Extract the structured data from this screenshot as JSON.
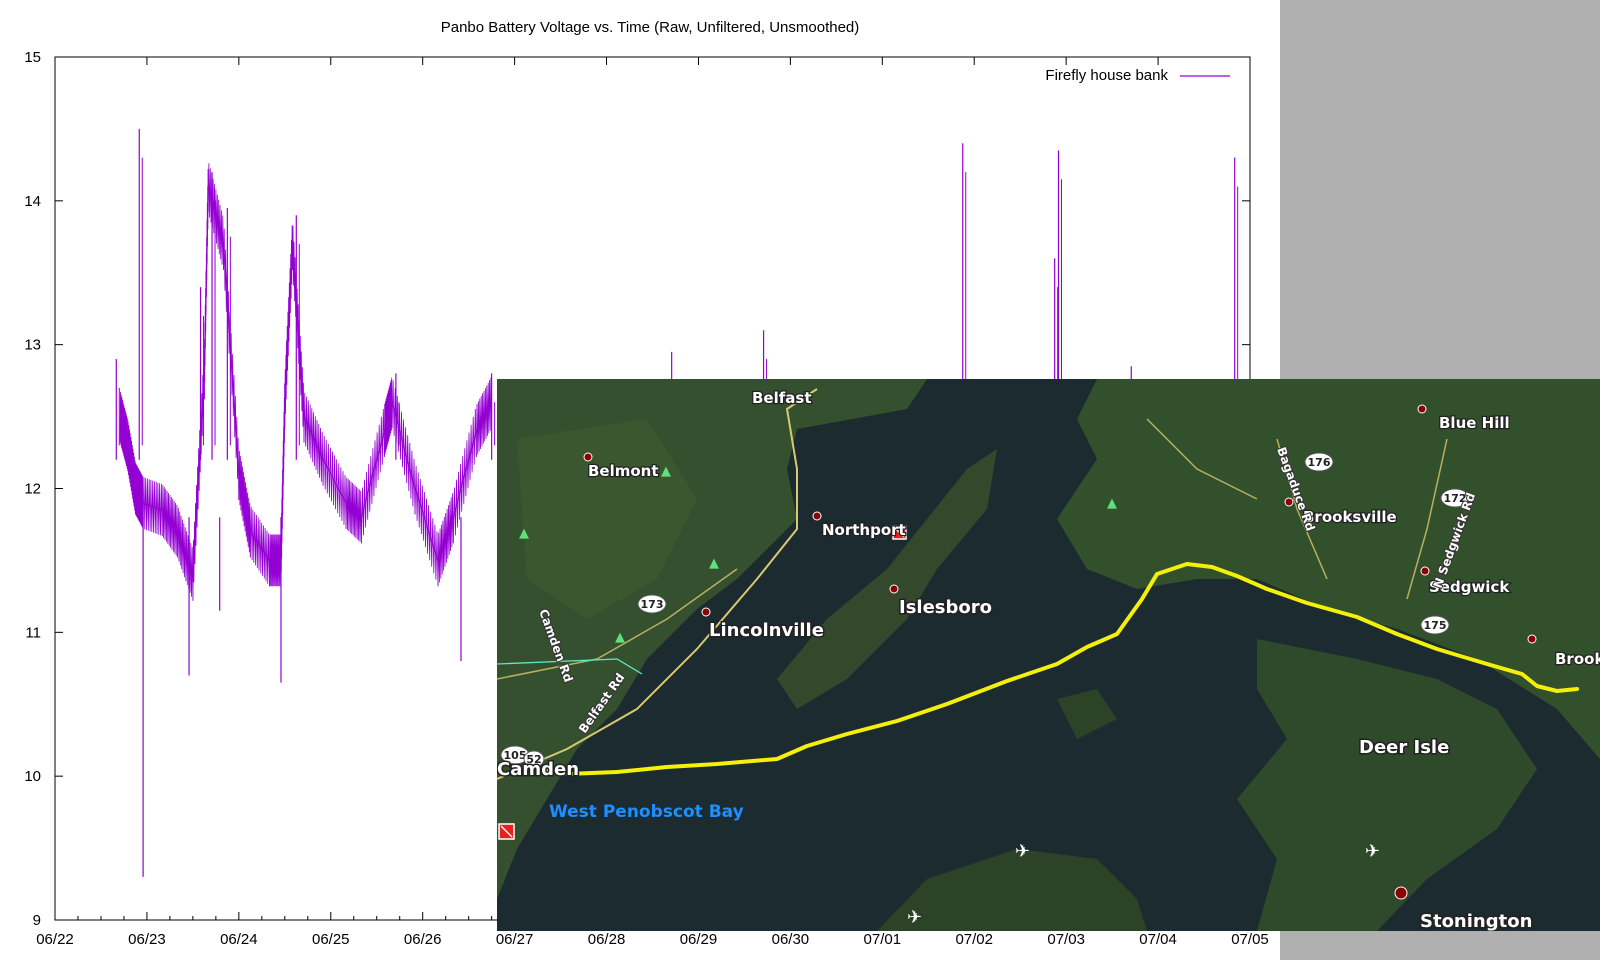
{
  "chart_data": {
    "type": "line",
    "title": "Panbo Battery Voltage vs. Time (Raw, Unfiltered, Unsmoothed)",
    "xlabel": "",
    "ylabel": "",
    "x_ticks": [
      "06/22",
      "06/23",
      "06/24",
      "06/25",
      "06/26",
      "06/27",
      "06/28",
      "06/29",
      "06/30",
      "07/01",
      "07/02",
      "07/03",
      "07/04",
      "07/05"
    ],
    "xlim": [
      "06/22",
      "07/05"
    ],
    "ylim": [
      9,
      15
    ],
    "y_ticks": [
      9,
      10,
      11,
      12,
      13,
      14,
      15
    ],
    "grid": false,
    "legend_position": "top-right",
    "series": [
      {
        "name": "Firefly house bank",
        "color": "#9400d3",
        "points": [
          [
            "06/22 17:00",
            12.5
          ],
          [
            "06/22 19:00",
            12.3
          ],
          [
            "06/22 21:00",
            12.0
          ],
          [
            "06/22 23:00",
            11.9
          ],
          [
            "06/23 04:00",
            11.85
          ],
          [
            "06/23 08:00",
            11.7
          ],
          [
            "06/23 12:00",
            11.4
          ],
          [
            "06/23 15:00",
            12.8
          ],
          [
            "06/23 16:00",
            14.1
          ],
          [
            "06/23 20:00",
            13.7
          ],
          [
            "06/24 00:00",
            12.1
          ],
          [
            "06/24 03:00",
            11.7
          ],
          [
            "06/24 08:00",
            11.5
          ],
          [
            "06/24 11:00",
            11.5
          ],
          [
            "06/24 12:00",
            12.6
          ],
          [
            "06/24 14:00",
            13.7
          ],
          [
            "06/24 17:00",
            12.5
          ],
          [
            "06/24 22:00",
            12.2
          ],
          [
            "06/25 04:00",
            11.9
          ],
          [
            "06/25 08:00",
            11.8
          ],
          [
            "06/25 14:00",
            12.4
          ],
          [
            "06/25 16:00",
            12.6
          ],
          [
            "06/25 22:00",
            12.0
          ],
          [
            "06/26 04:00",
            11.5
          ],
          [
            "06/26 08:00",
            11.8
          ],
          [
            "06/26 14:00",
            12.4
          ],
          [
            "06/26 18:00",
            12.6
          ]
        ],
        "spikes_max": [
          [
            "06/22 16:00",
            12.9
          ],
          [
            "06/22 22:00",
            14.5
          ],
          [
            "06/23 14:00",
            13.4
          ],
          [
            "06/23 17:00",
            14.2
          ],
          [
            "06/23 21:00",
            13.95
          ],
          [
            "06/24 15:00",
            13.9
          ],
          [
            "06/25 17:00",
            12.8
          ],
          [
            "06/26 18:00",
            12.8
          ],
          [
            "06/28 17:00",
            12.95
          ],
          [
            "06/29 17:00",
            13.1
          ],
          [
            "07/01 21:00",
            14.4
          ],
          [
            "07/02 21:00",
            13.6
          ],
          [
            "07/02 22:00",
            14.35
          ],
          [
            "07/03 17:00",
            12.85
          ],
          [
            "07/04 20:00",
            14.3
          ]
        ],
        "spikes_min": [
          [
            "06/22 23:00",
            9.3
          ],
          [
            "06/23 11:00",
            10.7
          ],
          [
            "06/23 19:00",
            11.15
          ],
          [
            "06/24 11:00",
            10.65
          ],
          [
            "06/26 10:00",
            10.8
          ]
        ]
      }
    ]
  },
  "map_overlay": {
    "labels": {
      "belfast": "Belfast",
      "belmont": "Belmont",
      "northport": "Northport",
      "lincolnville": "Lincolnville",
      "islesboro": "Islesboro",
      "camden": "Camden",
      "west_penobscot_bay": "West Penobscot Bay",
      "blue_hill": "Blue Hill",
      "brooksville": "Brooksville",
      "sedgwick": "Sedgwick",
      "brook": "Brook",
      "deer_isle": "Deer Isle",
      "stonington": "Stonington"
    },
    "roads": {
      "camden_rd": "Camden Rd",
      "belfast_rd": "Belfast Rd",
      "bagaduce_rd": "Bagaduce Rd",
      "n_sedgwick_rd": "N Sedgwick Rd"
    },
    "route_shields": {
      "r173": "173",
      "r176": "176",
      "r172": "172",
      "r175": "175",
      "r105": "105",
      "r52": "52"
    },
    "colors": {
      "track": "#f5f00a",
      "land": "#2f4a2a",
      "water": "#1b2b30",
      "road": "#d8c870"
    }
  }
}
